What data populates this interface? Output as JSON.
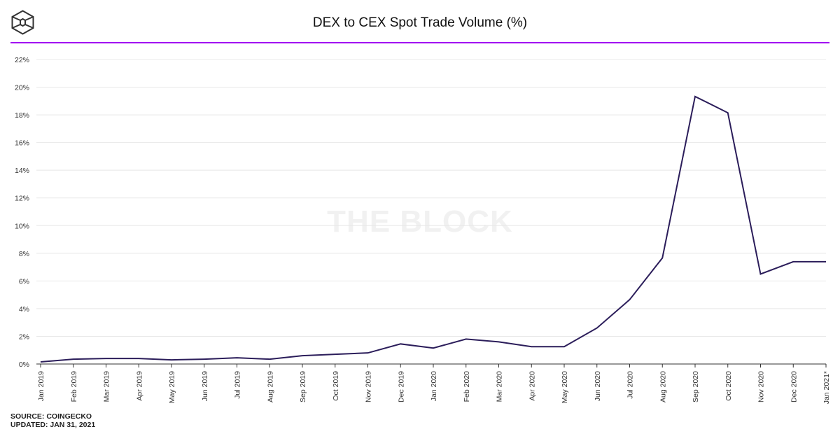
{
  "header": {
    "title": "DEX to CEX Spot Trade Volume (%)",
    "logo": "THE BLOCK cube logo"
  },
  "watermark": "THE BLOCK",
  "footer": {
    "source": "SOURCE: COINGECKO",
    "updated": "UPDATED: JAN 31, 2021"
  },
  "colors": {
    "line": "#2b1d5a",
    "accent": "#a100f2",
    "grid": "#e8e8e8"
  },
  "chart_data": {
    "type": "line",
    "title": "DEX to CEX Spot Trade Volume (%)",
    "xlabel": "",
    "ylabel": "",
    "ylim": [
      0,
      22
    ],
    "yticks": [
      "0%",
      "2%",
      "4%",
      "6%",
      "8%",
      "10%",
      "12%",
      "14%",
      "16%",
      "18%",
      "20%",
      "22%"
    ],
    "grid": true,
    "categories": [
      "Jan 2019",
      "Feb 2019",
      "Mar 2019",
      "Apr 2019",
      "May 2019",
      "Jun 2019",
      "Jul 2019",
      "Aug 2019",
      "Sep 2019",
      "Oct 2019",
      "Nov 2019",
      "Dec 2019",
      "Jan 2020",
      "Feb 2020",
      "Mar 2020",
      "Apr 2020",
      "May 2020",
      "Jun 2020",
      "Jul 2020",
      "Aug 2020",
      "Sep 2020",
      "Oct 2020",
      "Nov 2020",
      "Dec 2020",
      "Jan 2021*"
    ],
    "values": [
      0.15,
      0.35,
      0.4,
      0.4,
      0.3,
      0.35,
      0.45,
      0.35,
      0.6,
      0.7,
      0.8,
      1.45,
      1.15,
      1.8,
      1.6,
      1.25,
      1.25,
      2.6,
      4.65,
      7.66,
      19.33,
      18.15,
      6.5,
      7.39,
      7.39
    ]
  }
}
